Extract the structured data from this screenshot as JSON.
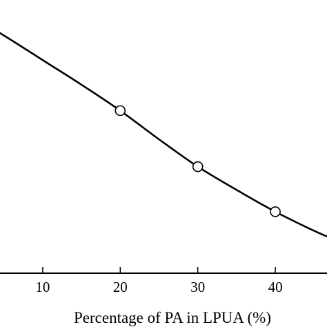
{
  "chart_data": {
    "type": "line",
    "title": "",
    "xlabel": "Percentage of PA in LPUA (%)",
    "ylabel": "",
    "xlim": [
      0,
      48
    ],
    "ylim": [
      0,
      1
    ],
    "xticks": [
      10,
      20,
      30,
      40
    ],
    "xtick_labels": [
      "10",
      "20",
      "30",
      "40"
    ],
    "grid": false,
    "legend": "none",
    "series": [
      {
        "curve_x": [
          0,
          5,
          10,
          15,
          20,
          25,
          30,
          35,
          40,
          45,
          47.5
        ],
        "curve_y": [
          0.955,
          0.87,
          0.78,
          0.69,
          0.595,
          0.49,
          0.39,
          0.305,
          0.225,
          0.155,
          0.125
        ],
        "marker_x": [
          20,
          30,
          40
        ],
        "marker_y": [
          0.595,
          0.39,
          0.225
        ],
        "marker": "open-circle",
        "color": "#000000"
      }
    ]
  }
}
